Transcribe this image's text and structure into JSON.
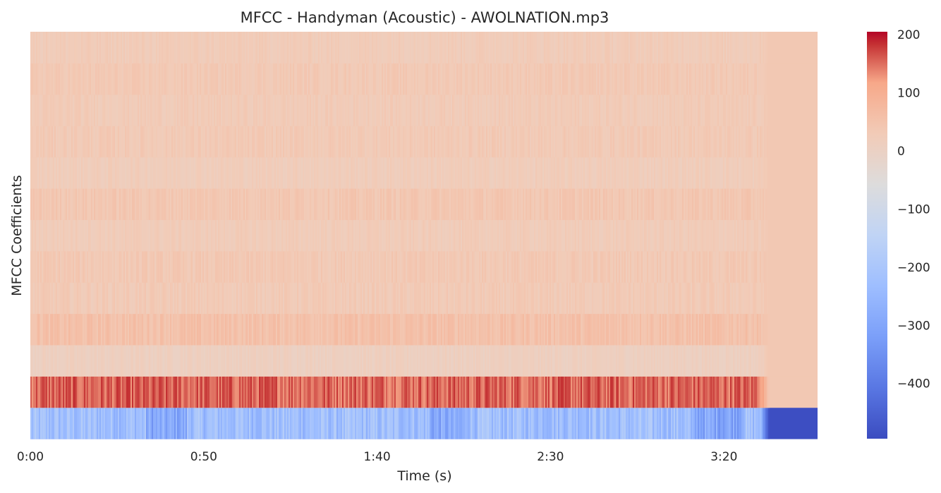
{
  "chart_data": {
    "type": "heatmap",
    "title": "MFCC - Handyman (Acoustic) - AWOLNATION.mp3",
    "xlabel": "Time (s)",
    "ylabel": "MFCC Coefficients",
    "x_ticks": [
      "0:00",
      "0:50",
      "1:40",
      "2:30",
      "3:20"
    ],
    "x_tick_seconds": [
      0,
      50,
      100,
      150,
      200
    ],
    "x_range_seconds": [
      0,
      227
    ],
    "y_ticks": [],
    "n_coefficients": 13,
    "sound_end_seconds": 210,
    "coefficients": [
      {
        "index": 0,
        "mean": -225,
        "variation": 55,
        "silence_value": -490
      },
      {
        "index": 1,
        "mean": 155,
        "variation": 30,
        "silence_value": 38
      },
      {
        "index": 2,
        "mean": 10,
        "variation": 12,
        "silence_value": 38
      },
      {
        "index": 3,
        "mean": 55,
        "variation": 18,
        "silence_value": 38
      },
      {
        "index": 4,
        "mean": 30,
        "variation": 14,
        "silence_value": 38
      },
      {
        "index": 5,
        "mean": 35,
        "variation": 14,
        "silence_value": 38
      },
      {
        "index": 6,
        "mean": 25,
        "variation": 12,
        "silence_value": 38
      },
      {
        "index": 7,
        "mean": 40,
        "variation": 14,
        "silence_value": 38
      },
      {
        "index": 8,
        "mean": 22,
        "variation": 12,
        "silence_value": 38
      },
      {
        "index": 9,
        "mean": 32,
        "variation": 13,
        "silence_value": 38
      },
      {
        "index": 10,
        "mean": 28,
        "variation": 12,
        "silence_value": 38
      },
      {
        "index": 11,
        "mean": 34,
        "variation": 12,
        "silence_value": 38
      },
      {
        "index": 12,
        "mean": 26,
        "variation": 12,
        "silence_value": 38
      }
    ],
    "colorbar": {
      "colormap": "coolwarm",
      "range": [
        -495,
        205
      ],
      "ticks": [
        200,
        100,
        0,
        -100,
        -200,
        -300,
        -400
      ],
      "tick_labels": [
        "200",
        "100",
        "0",
        "−100",
        "−200",
        "−300",
        "−400"
      ]
    },
    "grid": false
  }
}
